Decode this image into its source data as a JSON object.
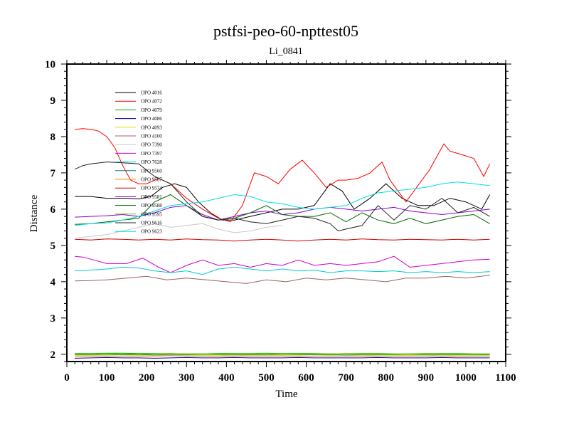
{
  "chart_data": {
    "type": "line",
    "title": "pstfsi-peo-60-npttest05",
    "subtitle": "Li_0841",
    "xlabel": "Time",
    "ylabel": "Distance",
    "xlim": [
      0,
      1100
    ],
    "ylim": [
      1.8,
      10
    ],
    "xticks": [
      0,
      100,
      200,
      300,
      400,
      500,
      600,
      700,
      800,
      900,
      1000,
      1100
    ],
    "yticks": [
      2,
      3,
      4,
      5,
      6,
      7,
      8,
      9,
      10
    ],
    "legend_position": "top-left",
    "series": [
      {
        "name": "OPO 4016",
        "color": "#000000",
        "x": [
          20,
          60,
          100,
          150,
          180,
          210,
          240,
          270,
          300,
          330,
          360,
          390,
          420,
          460,
          500,
          540,
          580,
          620,
          660,
          690,
          720,
          760,
          800,
          840,
          880,
          920,
          960,
          1000,
          1040,
          1060
        ],
        "y": [
          6.35,
          6.35,
          6.3,
          6.3,
          6.28,
          6.35,
          6.6,
          6.7,
          6.6,
          6.2,
          5.9,
          5.7,
          5.7,
          5.8,
          5.9,
          6.0,
          6.0,
          6.1,
          6.7,
          6.5,
          6.0,
          6.3,
          6.7,
          6.3,
          6.1,
          6.1,
          6.3,
          6.2,
          6.0,
          6.4
        ]
      },
      {
        "name": "OPO 4072",
        "color": "#ff0000",
        "x": [
          20,
          40,
          60,
          80,
          100,
          120,
          140,
          160,
          180,
          200,
          230,
          260,
          300,
          340,
          380,
          410,
          440,
          470,
          500,
          530,
          560,
          590,
          620,
          650,
          680,
          700,
          730,
          760,
          790,
          810,
          830,
          850,
          870,
          890,
          910,
          930,
          945,
          960,
          990,
          1020,
          1045,
          1060
        ],
        "y": [
          8.2,
          8.22,
          8.2,
          8.15,
          8.0,
          7.7,
          7.2,
          6.8,
          6.7,
          6.7,
          6.85,
          6.7,
          6.3,
          6.0,
          5.75,
          5.65,
          6.1,
          7.0,
          6.9,
          6.7,
          7.1,
          7.35,
          7.0,
          6.6,
          6.8,
          6.8,
          6.85,
          7.0,
          7.3,
          6.8,
          6.5,
          6.2,
          6.5,
          6.8,
          7.1,
          7.5,
          7.8,
          7.6,
          7.5,
          7.4,
          6.9,
          7.25
        ]
      },
      {
        "name": "OPO 4079",
        "color": "#00aa00",
        "x": [
          20,
          60,
          100,
          140,
          180,
          220,
          260,
          300,
          340,
          380,
          420,
          460,
          500,
          540,
          580,
          620,
          660,
          700,
          740,
          780,
          820,
          860,
          900,
          940,
          980,
          1020,
          1060
        ],
        "y": [
          2.02,
          2.02,
          2.03,
          2.03,
          2.02,
          2.02,
          2.02,
          2.01,
          2.01,
          2.02,
          2.02,
          2.02,
          2.03,
          2.02,
          2.02,
          2.02,
          2.01,
          2.02,
          2.02,
          2.02,
          2.01,
          2.01,
          2.02,
          2.02,
          2.02,
          2.01,
          2.01
        ]
      },
      {
        "name": "OPO 4086",
        "color": "#0000cc",
        "x": [
          20,
          60,
          100,
          140,
          180,
          220,
          260,
          300,
          340,
          380,
          420,
          460,
          500,
          540,
          580,
          620,
          660,
          700,
          740,
          780,
          820,
          860,
          900,
          940,
          980,
          1020,
          1060
        ],
        "y": [
          1.89,
          1.9,
          1.91,
          1.9,
          1.9,
          1.89,
          1.9,
          1.91,
          1.9,
          1.9,
          1.91,
          1.9,
          1.9,
          1.9,
          1.91,
          1.9,
          1.9,
          1.9,
          1.9,
          1.91,
          1.9,
          1.9,
          1.9,
          1.91,
          1.9,
          1.9,
          1.9
        ]
      },
      {
        "name": "OPO 4093",
        "color": "#dddd00",
        "x": [
          20,
          60,
          100,
          140,
          180,
          220,
          260,
          300,
          340,
          380,
          420,
          460,
          500,
          540,
          580,
          620,
          660,
          700,
          740,
          780,
          820,
          860,
          900,
          940,
          980,
          1020,
          1060
        ],
        "y": [
          1.97,
          1.97,
          1.97,
          1.98,
          1.97,
          1.97,
          1.96,
          1.97,
          1.97,
          1.97,
          1.96,
          1.97,
          1.97,
          1.97,
          1.97,
          1.98,
          1.97,
          1.97,
          1.96,
          1.97,
          1.97,
          1.97,
          1.97,
          1.96,
          1.97,
          1.97,
          1.97
        ]
      },
      {
        "name": "OPO 4100",
        "color": "#a06060",
        "x": [
          20,
          60,
          100,
          150,
          200,
          250,
          300,
          350,
          400,
          450,
          500,
          550,
          600,
          650,
          700,
          750,
          800,
          850,
          900,
          950,
          1000,
          1060
        ],
        "y": [
          4.02,
          4.03,
          4.05,
          4.1,
          4.15,
          4.05,
          4.1,
          4.05,
          4.0,
          3.95,
          4.05,
          4.0,
          4.1,
          4.05,
          4.1,
          4.05,
          4.0,
          4.1,
          4.1,
          4.15,
          4.1,
          4.18
        ]
      },
      {
        "name": "OPO 7390",
        "color": "#c8c8c8",
        "x": [
          20,
          60,
          100,
          140,
          180,
          220,
          260,
          300,
          340,
          380,
          420,
          460,
          500,
          540
        ],
        "y": [
          5.2,
          5.25,
          5.3,
          5.4,
          5.5,
          5.6,
          5.5,
          5.55,
          5.6,
          5.45,
          5.35,
          5.4,
          5.5,
          5.55
        ]
      },
      {
        "name": "OPO 7397",
        "color": "#cc00cc",
        "x": [
          20,
          40,
          60,
          100,
          150,
          190,
          230,
          260,
          300,
          340,
          380,
          420,
          460,
          500,
          540,
          580,
          620,
          660,
          700,
          740,
          780,
          820,
          860,
          900,
          940,
          980,
          1020,
          1060
        ],
        "y": [
          4.7,
          4.68,
          4.62,
          4.5,
          4.5,
          4.65,
          4.4,
          4.25,
          4.45,
          4.6,
          4.45,
          4.5,
          4.4,
          4.5,
          4.45,
          4.6,
          4.45,
          4.5,
          4.45,
          4.5,
          4.55,
          4.7,
          4.4,
          4.45,
          4.5,
          4.55,
          4.6,
          4.62
        ]
      },
      {
        "name": "OPO 7628",
        "color": "#00cccc",
        "x": [
          20,
          60,
          100,
          140,
          180,
          220,
          260,
          300,
          340,
          380,
          420,
          460,
          500,
          540,
          580,
          620,
          660,
          700,
          740,
          780,
          820,
          860,
          900,
          940,
          980,
          1020,
          1060
        ],
        "y": [
          4.3,
          4.32,
          4.35,
          4.4,
          4.38,
          4.3,
          4.25,
          4.3,
          4.2,
          4.35,
          4.4,
          4.35,
          4.3,
          4.35,
          4.3,
          4.32,
          4.25,
          4.3,
          4.3,
          4.28,
          4.3,
          4.25,
          4.28,
          4.25,
          4.28,
          4.25,
          4.28
        ]
      },
      {
        "name": "OPO 9560",
        "color": "#008080",
        "x": [
          20,
          60,
          100,
          140,
          180,
          220,
          260,
          300,
          340,
          380,
          420,
          460,
          500,
          540,
          580,
          620,
          660,
          700,
          740,
          780,
          820,
          860,
          900,
          940,
          980,
          1020,
          1060
        ],
        "y": [
          1.99,
          1.99,
          2.0,
          1.99,
          1.99,
          1.98,
          1.99,
          1.99,
          2.0,
          1.99,
          1.99,
          1.99,
          1.99,
          2.0,
          1.99,
          1.99,
          1.99,
          1.98,
          1.99,
          1.99,
          1.99,
          2.0,
          1.99,
          1.99,
          1.99,
          1.99,
          1.99
        ]
      },
      {
        "name": "OPO 9567",
        "color": "#ff8800",
        "x": [
          20,
          60,
          100,
          140,
          180,
          220,
          260,
          300,
          340,
          380,
          420,
          460,
          500,
          540,
          580,
          620,
          660,
          700,
          740,
          780,
          820,
          860,
          900,
          940,
          980,
          1020,
          1060
        ],
        "y": [
          1.95,
          1.95,
          1.94,
          1.95,
          1.95,
          1.95,
          1.96,
          1.95,
          1.95,
          1.94,
          1.95,
          1.95,
          1.95,
          1.95,
          1.94,
          1.95,
          1.95,
          1.95,
          1.95,
          1.94,
          1.95,
          1.95,
          1.95,
          1.95,
          1.94,
          1.95,
          1.95
        ]
      },
      {
        "name": "OPO 9574",
        "color": "#cc0000",
        "x": [
          20,
          60,
          100,
          140,
          180,
          220,
          260,
          300,
          340,
          380,
          420,
          460,
          500,
          540,
          580,
          620,
          660,
          700,
          740,
          780,
          820,
          860,
          900,
          940,
          980,
          1020,
          1060
        ],
        "y": [
          5.17,
          5.15,
          5.18,
          5.17,
          5.15,
          5.17,
          5.15,
          5.18,
          5.16,
          5.15,
          5.12,
          5.15,
          5.17,
          5.15,
          5.12,
          5.15,
          5.17,
          5.15,
          5.18,
          5.16,
          5.15,
          5.17,
          5.16,
          5.15,
          5.17,
          5.15,
          5.17
        ]
      },
      {
        "name": "OPO 9581",
        "color": "#8800cc",
        "x": [
          20,
          60,
          100,
          140,
          180,
          220,
          260,
          300,
          340,
          380,
          420,
          460,
          500,
          540,
          580,
          620,
          660,
          700,
          740,
          780,
          820,
          860,
          900,
          940,
          980,
          1020,
          1060
        ],
        "y": [
          5.78,
          5.8,
          5.82,
          5.85,
          5.8,
          5.9,
          6.05,
          6.1,
          5.85,
          5.7,
          5.8,
          5.9,
          5.95,
          5.85,
          5.9,
          6.0,
          6.05,
          6.0,
          5.95,
          6.0,
          6.05,
          5.95,
          5.9,
          5.85,
          5.9,
          5.95,
          6.0
        ]
      },
      {
        "name": "OPO 9588",
        "color": "#006600",
        "x": [
          20,
          60,
          100,
          140,
          180,
          220,
          260,
          300,
          340,
          380,
          420,
          460,
          500,
          540,
          580,
          620,
          660,
          700,
          740,
          780,
          820,
          860,
          900,
          940,
          980,
          1020,
          1060
        ],
        "y": [
          5.58,
          5.6,
          5.65,
          5.7,
          5.75,
          6.2,
          6.4,
          6.1,
          5.8,
          5.7,
          5.75,
          5.9,
          6.1,
          5.85,
          5.8,
          5.8,
          5.9,
          5.65,
          5.9,
          5.7,
          5.6,
          5.75,
          5.6,
          5.7,
          5.8,
          5.85,
          5.6
        ]
      },
      {
        "name": "OPO 9595",
        "color": "#66cc00",
        "x": [
          20,
          60,
          100,
          140,
          180,
          220,
          260,
          300,
          340,
          380,
          420,
          460,
          500,
          540,
          580,
          620,
          660,
          700,
          740,
          780,
          820,
          860,
          900,
          940,
          980,
          1020,
          1060
        ],
        "y": [
          2.0,
          2.01,
          2.02,
          2.01,
          2.0,
          2.01,
          2.02,
          2.01,
          2.01,
          2.0,
          2.01,
          2.01,
          2.02,
          2.01,
          2.0,
          2.01,
          2.01,
          2.02,
          2.01,
          2.01,
          2.0,
          2.01,
          2.02,
          2.01,
          2.01,
          2.0,
          2.01
        ]
      },
      {
        "name": "OPO 9616",
        "color": "#222222",
        "x": [
          20,
          40,
          60,
          100,
          140,
          180,
          220,
          260,
          300,
          340,
          380,
          420,
          460,
          500,
          540,
          580,
          620,
          660,
          680,
          700,
          740,
          780,
          820,
          860,
          900,
          940,
          980,
          1020,
          1060
        ],
        "y": [
          7.1,
          7.2,
          7.25,
          7.3,
          7.28,
          7.25,
          6.9,
          6.7,
          6.2,
          5.8,
          5.7,
          5.75,
          5.65,
          5.6,
          5.7,
          5.8,
          5.75,
          5.6,
          5.4,
          5.45,
          5.55,
          6.1,
          5.7,
          6.1,
          6.0,
          6.3,
          5.9,
          6.05,
          5.8
        ]
      },
      {
        "name": "OPO 9623",
        "color": "#00e0e0",
        "x": [
          20,
          60,
          100,
          140,
          180,
          220,
          260,
          300,
          340,
          380,
          420,
          460,
          500,
          540,
          580,
          620,
          660,
          700,
          740,
          780,
          820,
          860,
          900,
          940,
          980,
          1020,
          1060
        ],
        "y": [
          5.55,
          5.6,
          5.62,
          5.7,
          5.8,
          5.95,
          6.1,
          6.15,
          6.2,
          6.3,
          6.4,
          6.35,
          6.2,
          6.15,
          6.05,
          6.0,
          6.05,
          6.1,
          6.3,
          6.45,
          6.5,
          6.55,
          6.6,
          6.7,
          6.75,
          6.7,
          6.65
        ]
      }
    ]
  }
}
